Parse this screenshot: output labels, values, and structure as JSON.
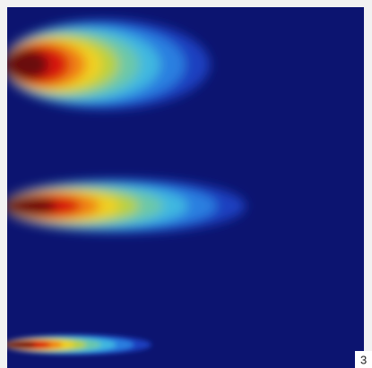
{
  "figure": {
    "label": "3"
  }
}
